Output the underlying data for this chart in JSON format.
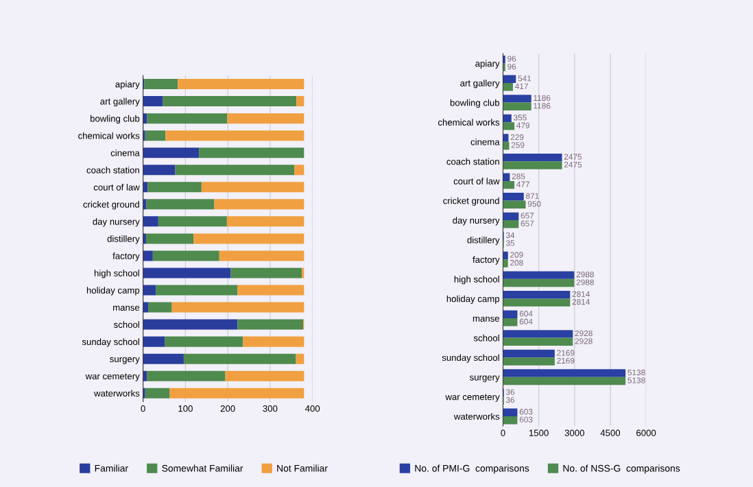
{
  "chart_data": [
    {
      "type": "bar",
      "orientation": "horizontal",
      "stacked": true,
      "categories": [
        "apiary",
        "art gallery",
        "bowling club",
        "chemical works",
        "cinema",
        "coach station",
        "court of law",
        "cricket ground",
        "day nursery",
        "distillery",
        "factory",
        "high school",
        "holiday camp",
        "manse",
        "school",
        "sunday school",
        "surgery",
        "war cemetery",
        "waterworks"
      ],
      "series": [
        {
          "name": "Familiar",
          "color": "#2b3d9c",
          "values": [
            3,
            47,
            9,
            5,
            132,
            76,
            11,
            8,
            36,
            7,
            23,
            207,
            30,
            12,
            223,
            51,
            96,
            9,
            5
          ]
        },
        {
          "name": "Somewhat Familiar",
          "color": "#4f8a4f",
          "values": [
            79,
            315,
            190,
            48,
            248,
            281,
            127,
            160,
            162,
            112,
            157,
            168,
            193,
            56,
            155,
            185,
            265,
            185,
            58
          ]
        },
        {
          "name": "Not Familiar",
          "color": "#f0a040",
          "values": [
            298,
            18,
            181,
            327,
            0,
            23,
            242,
            212,
            182,
            261,
            200,
            5,
            157,
            312,
            2,
            144,
            19,
            186,
            317
          ]
        }
      ],
      "xlim": [
        0,
        400
      ],
      "xticks": [
        0,
        100,
        200,
        300,
        400
      ],
      "grid": "x",
      "legend": "bottom"
    },
    {
      "type": "bar",
      "orientation": "horizontal",
      "categories": [
        "apiary",
        "art gallery",
        "bowling club",
        "chemical works",
        "cinema",
        "coach station",
        "court of law",
        "cricket ground",
        "day nursery",
        "distillery",
        "factory",
        "high school",
        "holiday camp",
        "manse",
        "school",
        "sunday school",
        "surgery",
        "war cemetery",
        "waterworks"
      ],
      "series": [
        {
          "name": "No. of PMI-G  comparisons",
          "color": "#2a40a2",
          "values": [
            96,
            541,
            1186,
            355,
            229,
            2475,
            285,
            871,
            657,
            34,
            209,
            2988,
            2814,
            604,
            2928,
            2169,
            5138,
            36,
            603
          ]
        },
        {
          "name": "No. of NSS-G  comparisons",
          "color": "#4f8a4f",
          "values": [
            96,
            417,
            1186,
            479,
            259,
            2475,
            477,
            950,
            657,
            35,
            208,
            2988,
            2814,
            604,
            2928,
            2169,
            5138,
            36,
            603
          ]
        }
      ],
      "xlim": [
        0,
        6000
      ],
      "xticks": [
        0,
        1500,
        3000,
        4500,
        6000
      ],
      "grid": "x",
      "legend": "bottom",
      "data_labels": true
    }
  ]
}
